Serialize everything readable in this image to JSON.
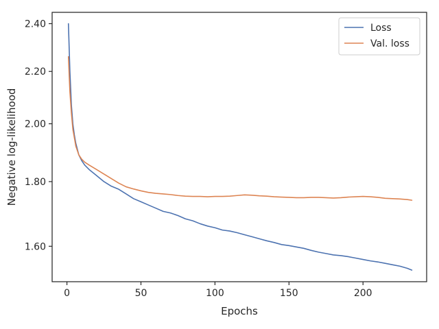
{
  "chart_data": {
    "type": "line",
    "title": "",
    "xlabel": "Epochs",
    "ylabel": "Negative log-likelihood",
    "xlim": [
      -10,
      243
    ],
    "ylim": [
      1.5,
      2.45
    ],
    "y_scale": "log",
    "xticks": [
      0,
      50,
      100,
      150,
      200
    ],
    "xtick_labels": [
      "0",
      "50",
      "100",
      "150",
      "200"
    ],
    "yticks": [
      1.6,
      1.8,
      2.0,
      2.2,
      2.4
    ],
    "ytick_labels": [
      "1.60",
      "1.80",
      "2.00",
      "2.20",
      "2.40"
    ],
    "grid": false,
    "legend_position": "top-right",
    "series": [
      {
        "name": "Loss",
        "color": "#4c72b0",
        "x": [
          1,
          2,
          3,
          4,
          5,
          6,
          7,
          8,
          10,
          12,
          15,
          20,
          25,
          30,
          35,
          40,
          45,
          50,
          55,
          60,
          65,
          70,
          75,
          80,
          85,
          90,
          95,
          100,
          105,
          110,
          115,
          120,
          125,
          130,
          135,
          140,
          145,
          150,
          155,
          160,
          165,
          170,
          175,
          180,
          185,
          190,
          195,
          200,
          205,
          210,
          215,
          220,
          225,
          230,
          233
        ],
        "y": [
          2.4,
          2.2,
          2.07,
          2.0,
          1.96,
          1.93,
          1.91,
          1.89,
          1.87,
          1.855,
          1.84,
          1.82,
          1.8,
          1.785,
          1.775,
          1.76,
          1.745,
          1.735,
          1.725,
          1.715,
          1.705,
          1.7,
          1.692,
          1.682,
          1.676,
          1.667,
          1.66,
          1.655,
          1.648,
          1.645,
          1.64,
          1.634,
          1.628,
          1.622,
          1.616,
          1.611,
          1.605,
          1.602,
          1.598,
          1.594,
          1.588,
          1.583,
          1.579,
          1.575,
          1.573,
          1.57,
          1.566,
          1.562,
          1.558,
          1.555,
          1.551,
          1.547,
          1.543,
          1.537,
          1.532
        ]
      },
      {
        "name": "Val. loss",
        "color": "#dd8452",
        "x": [
          1,
          2,
          3,
          4,
          5,
          6,
          7,
          8,
          10,
          12,
          15,
          20,
          25,
          30,
          35,
          40,
          45,
          50,
          55,
          60,
          65,
          70,
          75,
          80,
          85,
          90,
          95,
          100,
          105,
          110,
          115,
          120,
          125,
          130,
          135,
          140,
          145,
          150,
          155,
          160,
          165,
          170,
          175,
          180,
          185,
          190,
          195,
          200,
          205,
          210,
          215,
          220,
          225,
          230,
          233
        ],
        "y": [
          2.26,
          2.12,
          2.04,
          1.98,
          1.95,
          1.92,
          1.905,
          1.89,
          1.875,
          1.865,
          1.855,
          1.84,
          1.825,
          1.81,
          1.795,
          1.783,
          1.776,
          1.77,
          1.765,
          1.762,
          1.76,
          1.758,
          1.755,
          1.753,
          1.752,
          1.752,
          1.751,
          1.752,
          1.752,
          1.753,
          1.755,
          1.757,
          1.756,
          1.754,
          1.753,
          1.751,
          1.75,
          1.749,
          1.748,
          1.748,
          1.749,
          1.749,
          1.748,
          1.747,
          1.748,
          1.75,
          1.751,
          1.752,
          1.751,
          1.749,
          1.746,
          1.745,
          1.744,
          1.742,
          1.74
        ]
      }
    ]
  }
}
